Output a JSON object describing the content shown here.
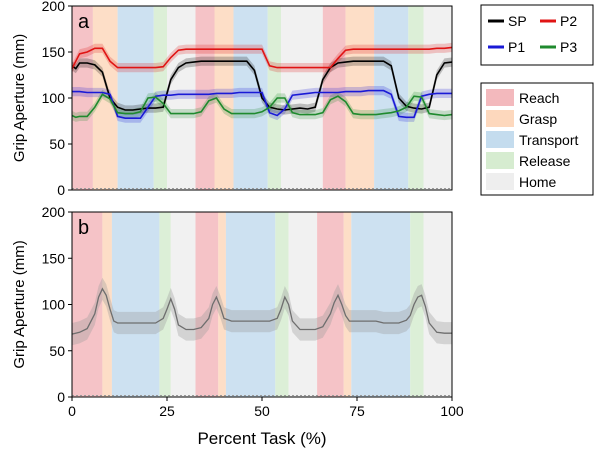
{
  "chart_data": [
    {
      "type": "line",
      "panel_label": "a",
      "ylabel": "Grip Aperture (mm)",
      "xlim": [
        0,
        100
      ],
      "ylim": [
        0,
        200
      ],
      "yticks": [
        0,
        50,
        100,
        150,
        200
      ],
      "grid": false,
      "series": [
        {
          "name": "SP",
          "color": "#000000",
          "x": [
            0,
            1,
            2,
            4,
            6,
            8,
            10,
            12,
            14,
            16,
            18,
            20,
            22,
            24,
            26,
            28,
            30,
            32,
            34,
            36,
            38,
            40,
            42,
            44,
            46,
            48,
            50,
            52,
            54,
            56,
            58,
            60,
            62,
            64,
            66,
            68,
            70,
            72,
            74,
            76,
            78,
            80,
            82,
            84,
            86,
            88,
            90,
            92,
            94,
            96,
            98,
            100
          ],
          "y": [
            135,
            132,
            138,
            138,
            136,
            128,
            100,
            90,
            87,
            87,
            88,
            89,
            89,
            90,
            120,
            133,
            138,
            139,
            140,
            140,
            140,
            140,
            140,
            140,
            140,
            130,
            100,
            90,
            88,
            87,
            88,
            89,
            88,
            90,
            120,
            133,
            138,
            139,
            140,
            140,
            140,
            140,
            140,
            135,
            100,
            91,
            89,
            88,
            90,
            125,
            138,
            139
          ]
        },
        {
          "name": "P1",
          "color": "#1a1ad6",
          "x": [
            0,
            2,
            4,
            6,
            8,
            10,
            12,
            14,
            16,
            18,
            20,
            22,
            24,
            26,
            28,
            30,
            32,
            34,
            36,
            38,
            40,
            42,
            44,
            46,
            48,
            50,
            52,
            54,
            56,
            58,
            60,
            62,
            64,
            66,
            68,
            70,
            72,
            74,
            76,
            78,
            80,
            82,
            84,
            86,
            88,
            90,
            92,
            94,
            96,
            98,
            100
          ],
          "y": [
            107,
            107,
            106,
            106,
            106,
            104,
            80,
            78,
            78,
            78,
            90,
            102,
            103,
            103,
            104,
            104,
            104,
            104,
            104,
            105,
            105,
            105,
            106,
            106,
            106,
            106,
            84,
            81,
            88,
            103,
            104,
            105,
            106,
            106,
            106,
            106,
            107,
            107,
            107,
            108,
            108,
            108,
            104,
            80,
            79,
            79,
            102,
            104,
            105,
            105,
            105
          ]
        },
        {
          "name": "P2",
          "color": "#e01414",
          "x": [
            0,
            2,
            4,
            6,
            8,
            10,
            12,
            14,
            16,
            18,
            20,
            22,
            24,
            26,
            28,
            30,
            32,
            34,
            36,
            38,
            40,
            42,
            44,
            46,
            48,
            50,
            52,
            54,
            56,
            58,
            60,
            62,
            64,
            66,
            68,
            70,
            72,
            74,
            76,
            78,
            80,
            82,
            84,
            86,
            88,
            90,
            92,
            94,
            96,
            98,
            100
          ],
          "y": [
            132,
            148,
            150,
            154,
            154,
            140,
            133,
            133,
            133,
            133,
            133,
            133,
            134,
            144,
            152,
            153,
            153,
            153,
            153,
            153,
            153,
            153,
            153,
            153,
            153,
            153,
            135,
            133,
            133,
            133,
            133,
            133,
            133,
            133,
            133,
            143,
            152,
            153,
            153,
            153,
            153,
            153,
            153,
            153,
            153,
            153,
            153,
            153,
            154,
            154,
            155
          ]
        },
        {
          "name": "P3",
          "color": "#1f8a2e",
          "x": [
            0,
            1,
            2,
            4,
            6,
            8,
            10,
            12,
            14,
            16,
            18,
            20,
            22,
            24,
            26,
            28,
            30,
            32,
            34,
            36,
            38,
            40,
            42,
            44,
            46,
            48,
            50,
            52,
            54,
            56,
            58,
            60,
            62,
            64,
            66,
            68,
            70,
            72,
            74,
            76,
            78,
            80,
            82,
            84,
            86,
            88,
            90,
            92,
            94,
            96,
            98,
            100
          ],
          "y": [
            81,
            79,
            80,
            80,
            90,
            104,
            99,
            84,
            83,
            83,
            85,
            100,
            101,
            94,
            83,
            83,
            83,
            83,
            85,
            97,
            100,
            88,
            83,
            83,
            83,
            83,
            85,
            90,
            100,
            100,
            84,
            82,
            82,
            82,
            84,
            98,
            102,
            96,
            83,
            82,
            82,
            82,
            83,
            84,
            86,
            90,
            102,
            101,
            83,
            82,
            81,
            82
          ]
        }
      ],
      "bands": [
        {
          "phase": "Reach",
          "x0": 0,
          "x1": 5.5
        },
        {
          "phase": "Grasp",
          "x0": 5.5,
          "x1": 12
        },
        {
          "phase": "Transport",
          "x0": 12,
          "x1": 21.5
        },
        {
          "phase": "Release",
          "x0": 21.5,
          "x1": 25
        },
        {
          "phase": "Home",
          "x0": 25,
          "x1": 32.5
        },
        {
          "phase": "Reach",
          "x0": 32.5,
          "x1": 37.5
        },
        {
          "phase": "Grasp",
          "x0": 37.5,
          "x1": 42.5
        },
        {
          "phase": "Transport",
          "x0": 42.5,
          "x1": 51.5
        },
        {
          "phase": "Release",
          "x0": 51.5,
          "x1": 55
        },
        {
          "phase": "Home",
          "x0": 55,
          "x1": 66
        },
        {
          "phase": "Reach",
          "x0": 66,
          "x1": 72
        },
        {
          "phase": "Grasp",
          "x0": 72,
          "x1": 79.5
        },
        {
          "phase": "Transport",
          "x0": 79.5,
          "x1": 88.5
        },
        {
          "phase": "Release",
          "x0": 88.5,
          "x1": 92.5
        },
        {
          "phase": "Home",
          "x0": 92.5,
          "x1": 100
        }
      ],
      "legend": {
        "placement": "right-top",
        "entries": [
          "SP",
          "P2",
          "P1",
          "P3"
        ]
      }
    },
    {
      "type": "area",
      "panel_label": "b",
      "xlabel": "Percent Task (%)",
      "ylabel": "Grip Aperture (mm)",
      "xlim": [
        0,
        100
      ],
      "ylim": [
        0,
        200
      ],
      "xticks": [
        0,
        25,
        50,
        75,
        100
      ],
      "yticks": [
        0,
        50,
        100,
        150,
        200
      ],
      "grid": false,
      "mean_line": {
        "color": "#6e6e6e",
        "x": [
          0,
          2,
          4,
          6,
          7,
          8,
          9,
          10,
          11,
          12,
          14,
          16,
          18,
          20,
          22,
          24,
          25,
          26,
          27,
          28,
          30,
          32,
          34,
          36,
          37,
          38,
          39,
          40,
          42,
          44,
          46,
          48,
          50,
          52,
          54,
          55,
          56,
          57,
          58,
          60,
          62,
          64,
          66,
          68,
          69,
          70,
          71,
          72,
          73,
          74,
          76,
          78,
          80,
          82,
          84,
          86,
          88,
          89,
          90,
          91,
          92,
          93,
          94,
          96,
          98,
          100
        ],
        "y": [
          68,
          70,
          74,
          90,
          108,
          117,
          110,
          95,
          82,
          80,
          80,
          80,
          80,
          80,
          80,
          85,
          95,
          106,
          95,
          78,
          73,
          73,
          75,
          85,
          100,
          108,
          98,
          85,
          82,
          82,
          82,
          82,
          82,
          82,
          85,
          95,
          108,
          100,
          82,
          73,
          73,
          73,
          76,
          90,
          102,
          110,
          100,
          88,
          82,
          82,
          82,
          82,
          82,
          80,
          80,
          80,
          83,
          88,
          100,
          108,
          110,
          98,
          80,
          70,
          69,
          69
        ]
      },
      "band_spread": 12,
      "bands": [
        {
          "phase": "Reach",
          "x0": 0,
          "x1": 8
        },
        {
          "phase": "Grasp",
          "x0": 8,
          "x1": 10.5
        },
        {
          "phase": "Transport",
          "x0": 10.5,
          "x1": 23
        },
        {
          "phase": "Release",
          "x0": 23,
          "x1": 26
        },
        {
          "phase": "Home",
          "x0": 26,
          "x1": 32.5
        },
        {
          "phase": "Reach",
          "x0": 32.5,
          "x1": 38.5
        },
        {
          "phase": "Grasp",
          "x0": 38.5,
          "x1": 40.5
        },
        {
          "phase": "Transport",
          "x0": 40.5,
          "x1": 53.5
        },
        {
          "phase": "Release",
          "x0": 53.5,
          "x1": 57
        },
        {
          "phase": "Home",
          "x0": 57,
          "x1": 64.5
        },
        {
          "phase": "Reach",
          "x0": 64.5,
          "x1": 71.5
        },
        {
          "phase": "Grasp",
          "x0": 71.5,
          "x1": 73.5
        },
        {
          "phase": "Transport",
          "x0": 73.5,
          "x1": 89
        },
        {
          "phase": "Release",
          "x0": 89,
          "x1": 92.5
        },
        {
          "phase": "Home",
          "x0": 92.5,
          "x1": 100
        }
      ]
    }
  ],
  "phase_legend": [
    {
      "label": "Reach",
      "color": "#f3b9bd"
    },
    {
      "label": "Grasp",
      "color": "#fdd8bd"
    },
    {
      "label": "Transport",
      "color": "#c4dcee"
    },
    {
      "label": "Release",
      "color": "#d6ecd0"
    },
    {
      "label": "Home",
      "color": "#eeeeee"
    }
  ]
}
